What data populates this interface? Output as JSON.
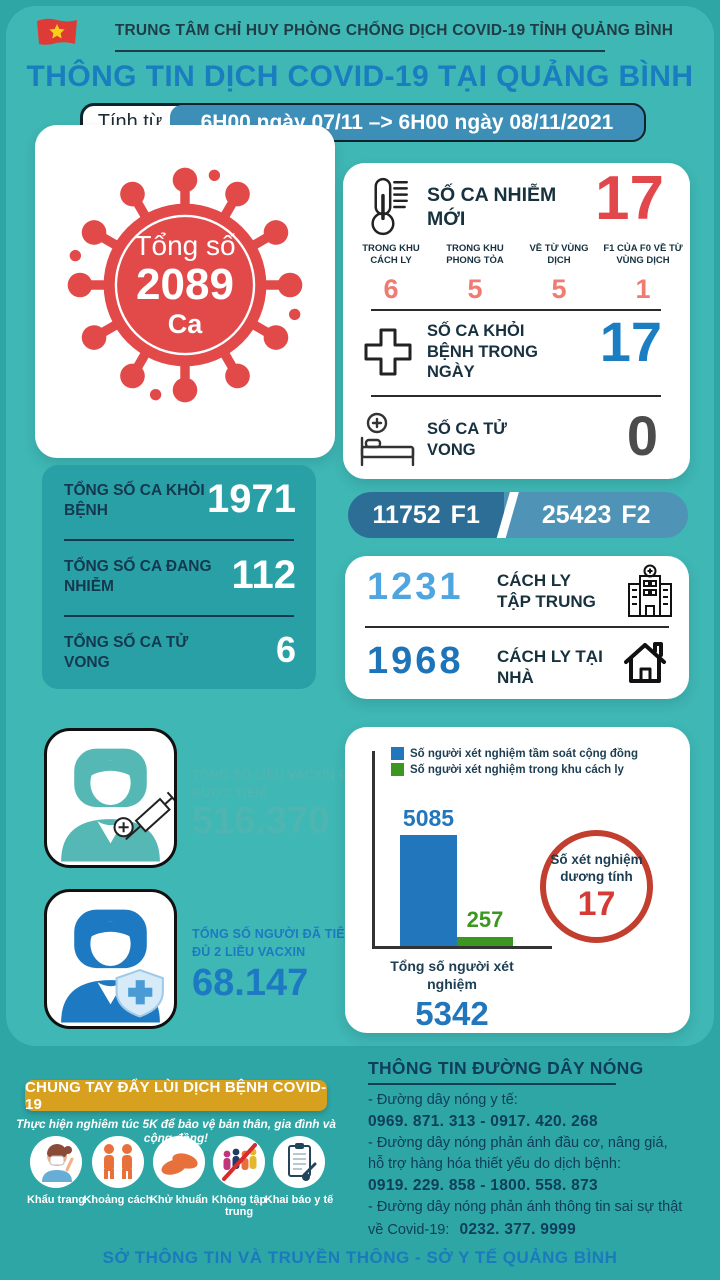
{
  "colors": {
    "page_bg": "#2ea6a5",
    "content_teal": "#3fb7b5",
    "cumulative_card_teal": "#28a0a5",
    "navy_text": "#14384f",
    "title_blue": "#1a7dc0",
    "accent_red": "#e2474b",
    "salmon": "#ef7b72",
    "recovered_blue": "#1b7ec2",
    "death_gray": "#4c4c4c",
    "f1_bar_blue": "#2d6e96",
    "f2_bar_blue": "#4f93b7",
    "quarantine_light_blue": "#4ea5e0",
    "quarantine_blue": "#1d74b8",
    "vaccine_teal": "#4fb5b0",
    "vaccine_blue": "#1d79c1",
    "gold": "#d7a01e",
    "bar_blue": "#2176bc",
    "bar_green": "#3b9722",
    "ring_red": "#c23e2e",
    "date_pill_blue": "#3e8fb8",
    "virus_red": "#e24a4a"
  },
  "header": {
    "org": "TRUNG TÂM CHỈ HUY PHÒNG CHỐNG DỊCH COVID-19 TỈNH QUẢNG BÌNH",
    "title": "THÔNG TIN DỊCH COVID-19 TẠI QUẢNG BÌNH",
    "date_label": "Tính từ",
    "date_range": "6H00 ngày 07/11 –> 6H00 ngày 08/11/2021"
  },
  "total_cases": {
    "label": "Tổng số",
    "value": "2089",
    "unit": "Ca"
  },
  "daily": {
    "new_cases_label": "SỐ CA NHIỄM MỚI",
    "new_cases_value": "17",
    "breakdown": [
      {
        "label": "TRONG KHU CÁCH LY",
        "value": "6"
      },
      {
        "label": "TRONG KHU PHONG TỎA",
        "value": "5"
      },
      {
        "label": "VỀ TỪ VÙNG DỊCH",
        "value": "5"
      },
      {
        "label": "F1 CỦA F0 VỀ TỪ VÙNG DỊCH",
        "value": "1"
      }
    ],
    "recovered_label": "SỐ CA KHỎI BỆNH TRONG NGÀY",
    "recovered_value": "17",
    "deaths_label": "SỐ CA TỬ VONG",
    "deaths_value": "0"
  },
  "cumulative": [
    {
      "label": "TỔNG SỐ CA KHỎI BỆNH",
      "value": "1971"
    },
    {
      "label": "TỔNG SỐ CA ĐANG NHIỄM",
      "value": "112"
    },
    {
      "label": "TỔNG SỐ CA TỬ VONG",
      "value": "6"
    }
  ],
  "contacts": {
    "f1_value": "11752",
    "f1_label": "F1",
    "f2_value": "25423",
    "f2_label": "F2"
  },
  "quarantine": [
    {
      "value": "1231",
      "label": "CÁCH LY TẬP TRUNG"
    },
    {
      "value": "1968",
      "label": "CÁCH LY TẠI NHÀ"
    }
  ],
  "vaccination": [
    {
      "label": "TỔNG SỐ LIỀU VACXIN ĐÃ ĐƯỢC TIÊM",
      "value": "516.370"
    },
    {
      "label": "TỔNG SỐ NGƯỜI ĐÃ TIÊM ĐỦ 2 LIỀU VACXIN",
      "value": "68.147"
    }
  ],
  "chart_data": {
    "type": "bar",
    "categories": [
      "Số người xét nghiệm tầm soát cộng đồng",
      "Số người xét nghiệm trong khu cách ly"
    ],
    "values": [
      5085,
      257
    ],
    "bar_colors": [
      "#2176bc",
      "#3b9722"
    ],
    "xlabel": "Tổng số người xét nghiệm",
    "total_label": "5342",
    "ylim": [
      0,
      5500
    ],
    "legend_position": "top-inside",
    "grid": false,
    "annotation": {
      "label": "Số xét nghiệm dương tính",
      "value": "17"
    }
  },
  "campaign": {
    "banner": "CHUNG TAY ĐẨY LÙI DỊCH BỆNH COVID-19",
    "slogan": "Thực hiện nghiêm túc 5K để bảo vệ bản thân, gia đình và cộng đồng!",
    "items": [
      {
        "label": "Khẩu trang"
      },
      {
        "label": "Khoảng cách"
      },
      {
        "label": "Khử khuẩn"
      },
      {
        "label": "Không tập trung"
      },
      {
        "label": "Khai báo y tế"
      }
    ]
  },
  "hotline": {
    "title": "THÔNG TIN ĐƯỜNG DÂY NÓNG",
    "line1": "- Đường dây nóng y tế:",
    "line2": "0969. 871. 313  -  0917. 420. 268",
    "line3": "- Đường dây nóng phản ánh đầu cơ, nâng giá,",
    "line4": "hỗ trợ hàng hóa thiết yếu do dịch bệnh:",
    "line5": "0919. 229. 858  -  1800. 558. 873",
    "line6": "- Đường dây nóng phản ánh thông tin sai sự thật",
    "line7_prefix": "về Covid-19:",
    "line7_number": "0232. 377. 9999"
  },
  "footer": "SỞ THÔNG TIN VÀ TRUYỀN THÔNG - SỞ Y TẾ QUẢNG BÌNH"
}
